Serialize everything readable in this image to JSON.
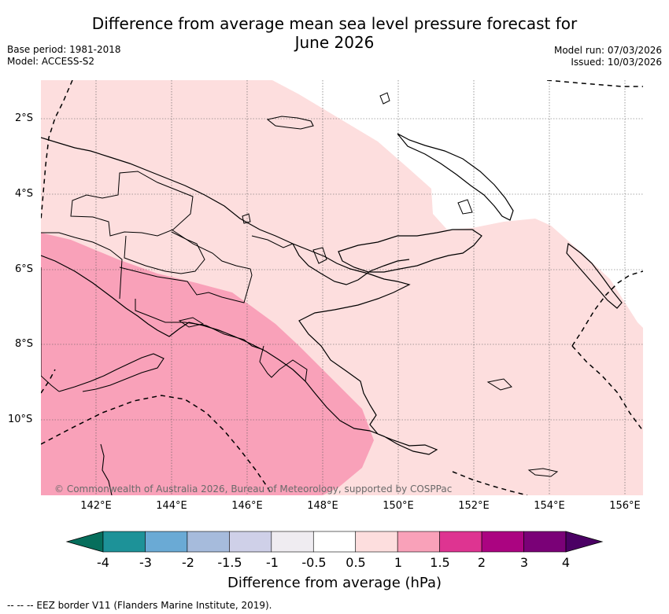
{
  "title_line1": "Difference from average mean sea level pressure forecast for",
  "title_line2": "June 2026",
  "base_period": "Base period: 1981-2018",
  "model": "Model: ACCESS-S2",
  "model_run": "Model run: 07/03/2026",
  "issued": "Issued: 10/03/2026",
  "copyright": "© Commonwealth of Australia 2026, Bureau of Meteorology, supported by COSPPac",
  "lat_labels": [
    "2°S",
    "4°S",
    "6°S",
    "8°S",
    "10°S"
  ],
  "lon_labels": [
    "142°E",
    "144°E",
    "146°E",
    "148°E",
    "150°E",
    "152°E",
    "154°E",
    "156°E"
  ],
  "colorbar": {
    "label": "Difference from average (hPa)",
    "ticks": [
      "-4",
      "-3",
      "-2",
      "-1.5",
      "-1",
      "-0.5",
      "0.5",
      "1",
      "1.5",
      "2",
      "3",
      "4"
    ],
    "colors": [
      "#066e5c",
      "#1d9298",
      "#6aaad5",
      "#a6bbdc",
      "#cfd0e8",
      "#efecf1",
      "#ffffff",
      "#fddede",
      "#f9a1b9",
      "#de3491",
      "#ab0481",
      "#7a0177",
      "#4b0064"
    ]
  },
  "legend_footer": "-- -- -- EEZ border V11 (Flanders Marine Institute, 2019).",
  "colors": {
    "light_pink": "#fddede",
    "medium_pink": "#f9a1b9"
  }
}
